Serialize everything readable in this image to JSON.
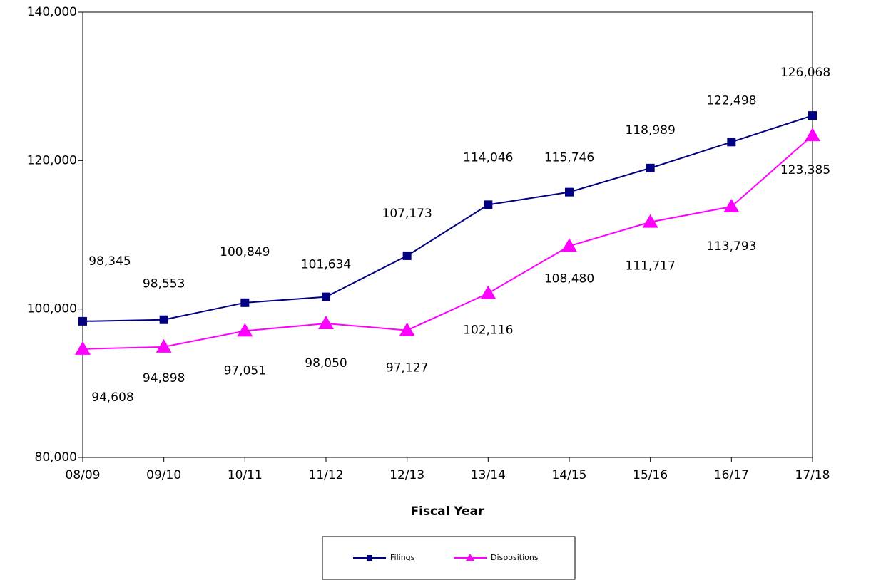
{
  "chart_data": {
    "type": "line",
    "x_label": "Fiscal Year",
    "categories": [
      "08/09",
      "09/10",
      "10/11",
      "11/12",
      "12/13",
      "13/14",
      "14/15",
      "15/16",
      "16/17",
      "17/18"
    ],
    "series": [
      {
        "name": "Filings",
        "color": "#000080",
        "marker": "square",
        "values": [
          98345,
          98553,
          100849,
          101634,
          107173,
          114046,
          115746,
          118989,
          122498,
          126068
        ],
        "value_labels": [
          "98,345",
          "98,553",
          "100,849",
          "101,634",
          "107,173",
          "114,046",
          "115,746",
          "118,989",
          "122,498",
          "126,068"
        ]
      },
      {
        "name": "Dispositions",
        "color": "#ff00ff",
        "marker": "triangle",
        "values": [
          94608,
          94898,
          97051,
          98050,
          97127,
          102116,
          108480,
          111717,
          113793,
          123385
        ],
        "value_labels": [
          "94,608",
          "94,898",
          "97,051",
          "98,050",
          "97,127",
          "102,116",
          "108,480",
          "111,717",
          "113,793",
          "123,385"
        ]
      }
    ],
    "ylim": [
      80000,
      140000
    ],
    "yticks": [
      {
        "value": 80000,
        "label": "80,000"
      },
      {
        "value": 100000,
        "label": "100,000"
      },
      {
        "value": 120000,
        "label": "120,000"
      },
      {
        "value": 140000,
        "label": "140,000"
      }
    ],
    "grid": false,
    "legend": "bottom"
  }
}
